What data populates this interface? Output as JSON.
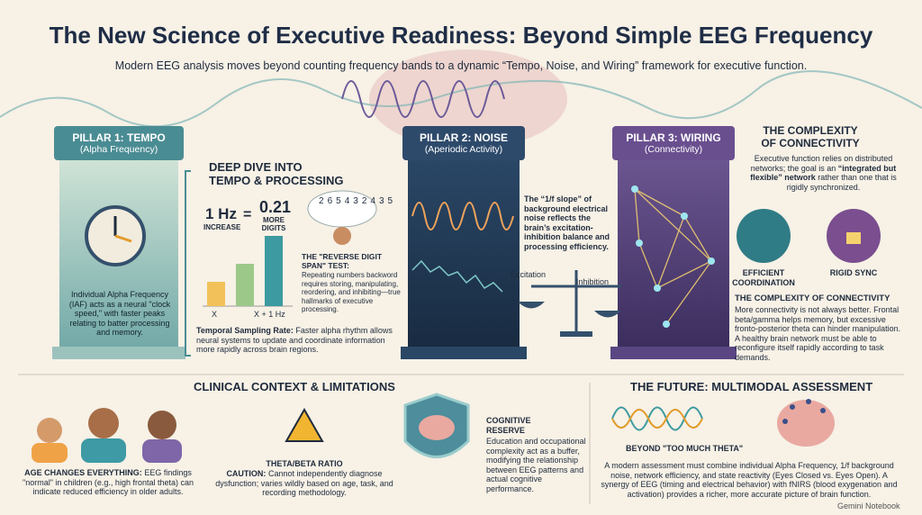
{
  "header": {
    "title": "The New Science of Executive Readiness: Beyond Simple EEG Frequency",
    "subtitle": "Modern EEG analysis moves beyond counting frequency bands to a dynamic “Tempo, Noise, and Wiring” framework for executive function."
  },
  "pillars": [
    {
      "title": "PILLAR 1: TEMPO",
      "subtitle": "(Alpha Frequency)"
    },
    {
      "title": "PILLAR 2: NOISE",
      "subtitle": "(Aperiodic Activity)"
    },
    {
      "title": "PILLAR 3: WIRING",
      "subtitle": "(Connectivity)"
    }
  ],
  "tempo": {
    "description": "Individual Alpha Frequency (IAF) acts as a neural \"clock speed,\" with faster peaks relating to batter processing and memory.",
    "deep_dive_title": "DEEP DIVE INTO TEMPO & PROCESSING",
    "hz": "1 Hz",
    "increase": "INCREASE",
    "equals": "=",
    "digits": "0.21",
    "digits_label": "MORE DIGITS",
    "bar_labels": [
      "X",
      "X + 1 Hz"
    ],
    "digit_cloud": [
      "2",
      "6",
      "5",
      "4",
      "3",
      "2",
      "4",
      "3",
      "5"
    ],
    "test_title": "THE \"REVERSE DIGIT SPAN\" TEST:",
    "test_body": "Repeating numbers backword requires storing, manipulating, reordering, and inhibiting—true hallmarks of executive processing.",
    "sampling_title": "Temporal Sampling Rate:",
    "sampling_body": "Faster alpha rhythm allows neural systems to update and coordinate information more rapidly across brain regions."
  },
  "noise": {
    "description": "The “1/f slope” of background electrical noise reflects the brain’s excitation-inhibition balance and processing efficiency.",
    "excitation": "Excitation",
    "inhibition": "Inhibition"
  },
  "connectivity": {
    "title": "THE COMPLEXITY OF CONNECTIVITY",
    "intro": [
      "Executive function relies on distributed networks; the goal is an ",
      "“integrated but flexible” network",
      " rather than one that is rigidly synchronized."
    ],
    "efficient": "EFFICIENT COORDINATION",
    "rigid": "RIGID SYNC",
    "title2": "THE COMPLEXITY OF CONNECTIVITY",
    "body": "More connectivity is not always better. Frontal beta/gamma helps memory, but excessive fronto-posterior theta can hinder manipulation. A healthy brain network must be able to reconfigure itself rapidly according to task demands."
  },
  "clinical": {
    "title": "CLINICAL CONTEXT & LIMITATIONS",
    "age_title": "AGE CHANGES EVERYTHING:",
    "age_body": "EEG findings \"normal\" in children (e.g., high frontal theta) can indicate reduced efficiency in older adults.",
    "theta_title": "THETA/BETA RATIO",
    "theta_caution": "CAUTION:",
    "theta_body": "Cannot independently diagnose dysfunction; varies wildly based on age, task, and recording methodology.",
    "reserve_title": "COGNITIVE RESERVE",
    "reserve_body": "Education and occupational complexity act as a buffer, modifying the relationship between EEG patterns and actual cognitive performance."
  },
  "future": {
    "title": "THE FUTURE: MULTIMODAL ASSESSMENT",
    "theta_label": "BEYOND \"TOO MUCH THETA\"",
    "body": "A modern assessment must combine individual Alpha Frequency, 1/f background noise, network efficiency, and state reactivity (Eyes Closed vs. Eyes Open). A synergy of EEG (timing and electrical behavior) with fNIRS (blood exygenation and activation) provides a richer, more accurate picture of brain function."
  },
  "footer": "Gemini Notebook"
}
